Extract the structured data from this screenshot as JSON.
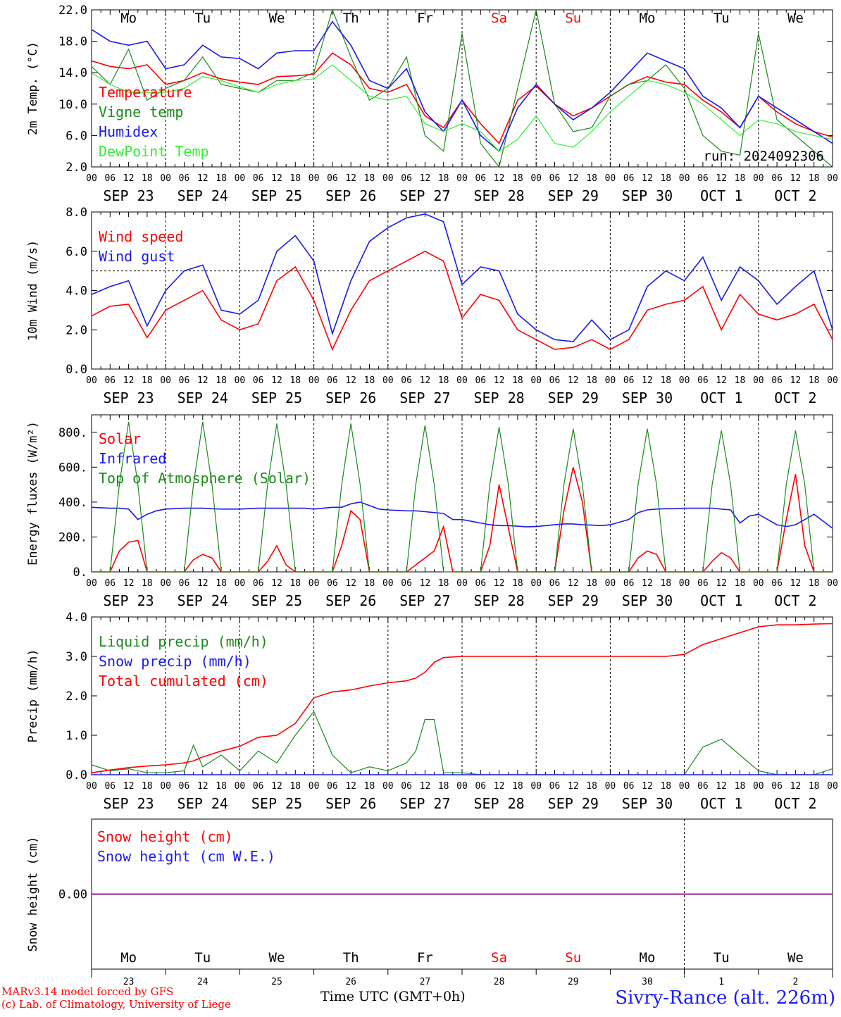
{
  "colors": {
    "red": "#ff0000",
    "dark_green": "#1a8a1a",
    "light_green": "#33ee33",
    "blue": "#1a1aee",
    "purple": "#800080",
    "black": "#000000"
  },
  "x_axis": {
    "hour_labels": [
      "00",
      "06",
      "12",
      "18"
    ],
    "date_labels": [
      "SEP 23",
      "SEP 24",
      "SEP 25",
      "SEP 26",
      "SEP 27",
      "SEP 28",
      "SEP 29",
      "SEP 30",
      "OCT  1",
      "OCT  2"
    ],
    "weekday_labels": [
      "Mo",
      "Tu",
      "We",
      "Th",
      "Fr",
      "Sa",
      "Su",
      "Mo",
      "Tu",
      "We"
    ],
    "weekend_days": [
      5,
      6
    ],
    "day_numbers": [
      "23",
      "24",
      "25",
      "26",
      "27",
      "28",
      "29",
      "30",
      "1",
      "2"
    ],
    "time_range_hours": [
      0,
      240
    ]
  },
  "chart_data": [
    {
      "type": "line",
      "ylabel": "2m Temp. (°C)",
      "ylim": [
        2.0,
        22.0
      ],
      "yticks": [
        "2.0",
        "6.0",
        "10.0",
        "14.0",
        "18.0",
        "22.0"
      ],
      "ytick_values": [
        2,
        6,
        10,
        14,
        18,
        22
      ],
      "annotation": "run: 2024092306",
      "x_hours": [
        0,
        6,
        12,
        18,
        24,
        30,
        36,
        42,
        48,
        54,
        60,
        66,
        72,
        78,
        84,
        90,
        96,
        102,
        108,
        114,
        120,
        126,
        132,
        138,
        144,
        150,
        156,
        162,
        168,
        174,
        180,
        186,
        192,
        198,
        204,
        210,
        216,
        222,
        228,
        234,
        240
      ],
      "series": [
        {
          "name": "Temperature",
          "color": "red",
          "values": [
            15.5,
            14.8,
            14.5,
            15.0,
            12.5,
            13.0,
            14.0,
            13.2,
            12.8,
            12.5,
            13.5,
            13.6,
            13.8,
            16.5,
            15.0,
            12.0,
            11.5,
            12.5,
            8.5,
            7.0,
            10.5,
            7.5,
            5.0,
            10.5,
            12.3,
            10.0,
            8.5,
            9.5,
            11.0,
            12.5,
            13.5,
            12.8,
            12.5,
            10.5,
            9.0,
            7.0,
            11.0,
            9.0,
            7.5,
            6.5,
            5.8
          ]
        },
        {
          "name": "Vigne temp",
          "color": "dark_green",
          "values": [
            14.8,
            12.5,
            17.0,
            10.5,
            12.0,
            13.0,
            16.0,
            12.5,
            12.0,
            11.5,
            13.0,
            13.0,
            14.0,
            22.0,
            16.0,
            10.5,
            12.0,
            16.0,
            6.0,
            4.0,
            19.0,
            5.0,
            2.0,
            12.0,
            22.0,
            10.0,
            6.5,
            7.0,
            11.0,
            12.5,
            13.0,
            15.0,
            12.0,
            6.0,
            4.0,
            3.5,
            19.0,
            8.0,
            6.0,
            4.0,
            2.0
          ]
        },
        {
          "name": "Humidex",
          "color": "blue",
          "values": [
            19.5,
            18.0,
            17.5,
            18.0,
            14.5,
            15.0,
            17.5,
            16.0,
            15.8,
            14.5,
            16.5,
            16.8,
            16.8,
            20.5,
            17.5,
            13.0,
            12.0,
            14.5,
            9.0,
            6.5,
            10.5,
            6.0,
            4.0,
            9.5,
            12.5,
            10.0,
            8.0,
            9.5,
            11.5,
            14.0,
            16.5,
            15.5,
            14.5,
            11.0,
            9.5,
            7.0,
            11.0,
            9.5,
            8.0,
            6.5,
            5.0
          ]
        },
        {
          "name": "DewPoint Temp",
          "color": "light_green",
          "values": [
            14.0,
            12.5,
            11.5,
            11.5,
            11.5,
            12.0,
            13.5,
            13.0,
            12.2,
            11.5,
            12.5,
            13.0,
            13.2,
            15.0,
            13.0,
            11.0,
            10.5,
            11.0,
            7.5,
            6.5,
            7.5,
            6.5,
            4.0,
            5.5,
            8.5,
            5.0,
            4.5,
            6.5,
            9.0,
            11.0,
            13.0,
            12.5,
            11.5,
            10.0,
            8.0,
            6.0,
            8.0,
            7.5,
            6.5,
            6.0,
            5.5
          ]
        }
      ]
    },
    {
      "type": "line",
      "ylabel": "10m Wind (m/s)",
      "ylim": [
        0.0,
        8.0
      ],
      "yticks": [
        "0.0",
        "2.0",
        "4.0",
        "6.0",
        "8.0"
      ],
      "ytick_values": [
        0,
        2,
        4,
        6,
        8
      ],
      "reference_line": 5.0,
      "x_hours": [
        0,
        6,
        12,
        18,
        24,
        30,
        36,
        42,
        48,
        54,
        60,
        66,
        72,
        78,
        84,
        90,
        96,
        102,
        108,
        114,
        120,
        126,
        132,
        138,
        144,
        150,
        156,
        162,
        168,
        174,
        180,
        186,
        192,
        198,
        204,
        210,
        216,
        222,
        228,
        234,
        240
      ],
      "series": [
        {
          "name": "Wind speed",
          "color": "red",
          "values": [
            2.7,
            3.2,
            3.3,
            1.6,
            3.0,
            3.5,
            4.0,
            2.5,
            2.0,
            2.3,
            4.5,
            5.2,
            3.5,
            1.0,
            3.0,
            4.5,
            5.0,
            5.5,
            6.0,
            5.5,
            2.6,
            3.8,
            3.5,
            2.0,
            1.5,
            1.0,
            1.1,
            1.5,
            1.0,
            1.5,
            3.0,
            3.3,
            3.5,
            4.2,
            2.0,
            3.8,
            2.8,
            2.5,
            2.8,
            3.3,
            1.5
          ]
        },
        {
          "name": "Wind gust",
          "color": "blue",
          "values": [
            3.8,
            4.2,
            4.5,
            2.2,
            4.0,
            5.0,
            5.3,
            3.0,
            2.8,
            3.5,
            6.0,
            6.8,
            5.5,
            1.8,
            4.5,
            6.5,
            7.2,
            7.7,
            7.9,
            7.5,
            4.3,
            5.2,
            5.0,
            2.8,
            2.0,
            1.5,
            1.4,
            2.5,
            1.5,
            2.0,
            4.2,
            5.0,
            4.5,
            5.7,
            3.5,
            5.2,
            4.5,
            3.3,
            4.2,
            5.0,
            2.0
          ]
        }
      ]
    },
    {
      "type": "line",
      "ylabel": "Energy fluxes (W/m²)",
      "ylim": [
        0,
        900
      ],
      "yticks": [
        "0.",
        "200.",
        "400.",
        "600.",
        "800."
      ],
      "ytick_values": [
        0,
        200,
        400,
        600,
        800
      ],
      "x_hours": [
        0,
        6,
        9,
        12,
        15,
        18,
        21,
        24,
        30,
        33,
        36,
        39,
        42,
        45,
        48,
        54,
        57,
        60,
        63,
        66,
        69,
        72,
        78,
        81,
        84,
        87,
        90,
        93,
        96,
        102,
        105,
        108,
        111,
        114,
        117,
        120,
        126,
        129,
        132,
        135,
        138,
        141,
        144,
        150,
        153,
        156,
        159,
        162,
        165,
        168,
        174,
        177,
        180,
        183,
        186,
        189,
        192,
        198,
        201,
        204,
        207,
        210,
        213,
        216,
        222,
        225,
        228,
        231,
        234,
        237,
        240
      ],
      "series": [
        {
          "name": "Solar",
          "color": "red",
          "values": [
            0,
            0,
            120,
            170,
            180,
            0,
            0,
            0,
            0,
            70,
            100,
            80,
            0,
            0,
            0,
            0,
            60,
            150,
            40,
            0,
            0,
            0,
            0,
            150,
            350,
            300,
            0,
            0,
            0,
            0,
            40,
            80,
            120,
            260,
            0,
            0,
            0,
            150,
            500,
            250,
            0,
            0,
            0,
            0,
            350,
            600,
            400,
            0,
            0,
            0,
            0,
            80,
            120,
            100,
            0,
            0,
            0,
            0,
            60,
            110,
            80,
            0,
            0,
            0,
            0,
            300,
            560,
            150,
            0,
            0,
            0
          ]
        },
        {
          "name": "Infrared",
          "color": "blue",
          "values": [
            370,
            365,
            365,
            360,
            300,
            330,
            350,
            360,
            365,
            365,
            365,
            362,
            360,
            360,
            360,
            365,
            365,
            365,
            365,
            365,
            365,
            360,
            370,
            370,
            390,
            400,
            380,
            360,
            355,
            350,
            350,
            345,
            340,
            335,
            300,
            300,
            280,
            270,
            265,
            265,
            262,
            258,
            260,
            270,
            275,
            275,
            270,
            268,
            265,
            270,
            300,
            340,
            355,
            360,
            362,
            362,
            365,
            365,
            365,
            360,
            355,
            280,
            320,
            330,
            270,
            260,
            270,
            300,
            330,
            290,
            250
          ]
        },
        {
          "name": "Top of Atmosphere (Solar)",
          "color": "dark_green",
          "values": [
            0,
            0,
            500,
            860,
            500,
            0,
            0,
            0,
            0,
            500,
            860,
            500,
            0,
            0,
            0,
            0,
            500,
            850,
            500,
            0,
            0,
            0,
            0,
            500,
            850,
            500,
            0,
            0,
            0,
            0,
            500,
            840,
            500,
            0,
            0,
            0,
            0,
            500,
            830,
            500,
            0,
            0,
            0,
            0,
            500,
            820,
            500,
            0,
            0,
            0,
            0,
            500,
            820,
            500,
            0,
            0,
            0,
            0,
            500,
            810,
            500,
            0,
            0,
            0,
            0,
            500,
            810,
            500,
            0,
            0,
            0
          ]
        }
      ]
    },
    {
      "type": "line",
      "ylabel": "Precip (mm/h)",
      "ylim": [
        0.0,
        4.0
      ],
      "yticks": [
        "0.0",
        "1.0",
        "2.0",
        "3.0",
        "4.0"
      ],
      "ytick_values": [
        0,
        1,
        2,
        3,
        4
      ],
      "x_hours": [
        0,
        6,
        12,
        18,
        24,
        30,
        33,
        36,
        42,
        48,
        54,
        60,
        66,
        72,
        78,
        84,
        90,
        96,
        102,
        105,
        108,
        111,
        114,
        120,
        126,
        132,
        138,
        144,
        150,
        156,
        162,
        168,
        174,
        180,
        186,
        192,
        198,
        204,
        210,
        216,
        222,
        228,
        234,
        240
      ],
      "series": [
        {
          "name": "Liquid precip (mm/h)",
          "color": "dark_green",
          "values": [
            0.25,
            0.1,
            0.15,
            0.05,
            0.05,
            0.1,
            0.75,
            0.2,
            0.5,
            0.1,
            0.6,
            0.3,
            1.0,
            1.6,
            0.5,
            0.05,
            0.2,
            0.1,
            0.3,
            0.6,
            1.4,
            1.4,
            0.05,
            0.05,
            0.0,
            0.0,
            0.0,
            0.0,
            0.0,
            0.0,
            0.0,
            0.0,
            0.0,
            0.0,
            0.0,
            0.0,
            0.7,
            0.9,
            0.5,
            0.1,
            0.0,
            0.0,
            0.0,
            0.15
          ]
        },
        {
          "name": "Snow precip (mm/h)",
          "color": "blue",
          "values": [
            0,
            0,
            0,
            0,
            0,
            0,
            0,
            0,
            0,
            0,
            0,
            0,
            0,
            0,
            0,
            0,
            0,
            0,
            0,
            0,
            0,
            0,
            0,
            0,
            0,
            0,
            0,
            0,
            0,
            0,
            0,
            0,
            0,
            0,
            0,
            0,
            0,
            0,
            0,
            0,
            0,
            0,
            0,
            0
          ]
        },
        {
          "name": "Total cumulated (cm)",
          "color": "red",
          "values": [
            0.05,
            0.12,
            0.18,
            0.22,
            0.25,
            0.3,
            0.35,
            0.45,
            0.6,
            0.72,
            0.95,
            1.0,
            1.3,
            1.95,
            2.1,
            2.15,
            2.25,
            2.33,
            2.38,
            2.45,
            2.6,
            2.85,
            2.97,
            3.0,
            3.0,
            3.0,
            3.0,
            3.0,
            3.0,
            3.0,
            3.0,
            3.0,
            3.0,
            3.0,
            3.0,
            3.05,
            3.3,
            3.45,
            3.6,
            3.75,
            3.8,
            3.8,
            3.82,
            3.83
          ]
        }
      ]
    },
    {
      "type": "line",
      "ylabel": "Snow height (cm)",
      "ylim": [
        -1.0,
        1.0
      ],
      "yticks": [
        "0.00"
      ],
      "ytick_values": [
        0
      ],
      "x_hours": [
        0,
        240
      ],
      "series": [
        {
          "name": "Snow height (cm)",
          "color": "red",
          "values": [
            0,
            0
          ]
        },
        {
          "name": "Snow height (cm W.E.)",
          "color": "blue",
          "values": [
            0,
            0
          ]
        }
      ],
      "zero_line_color": "purple"
    }
  ],
  "footer": {
    "model_line": "MARv3.14 model forced by GFS",
    "credit_line": "(c) Lab. of Climatology, University of Liege",
    "time_label": "Time UTC (GMT+0h)",
    "location": "Sivry-Rance (alt. 226m)"
  }
}
